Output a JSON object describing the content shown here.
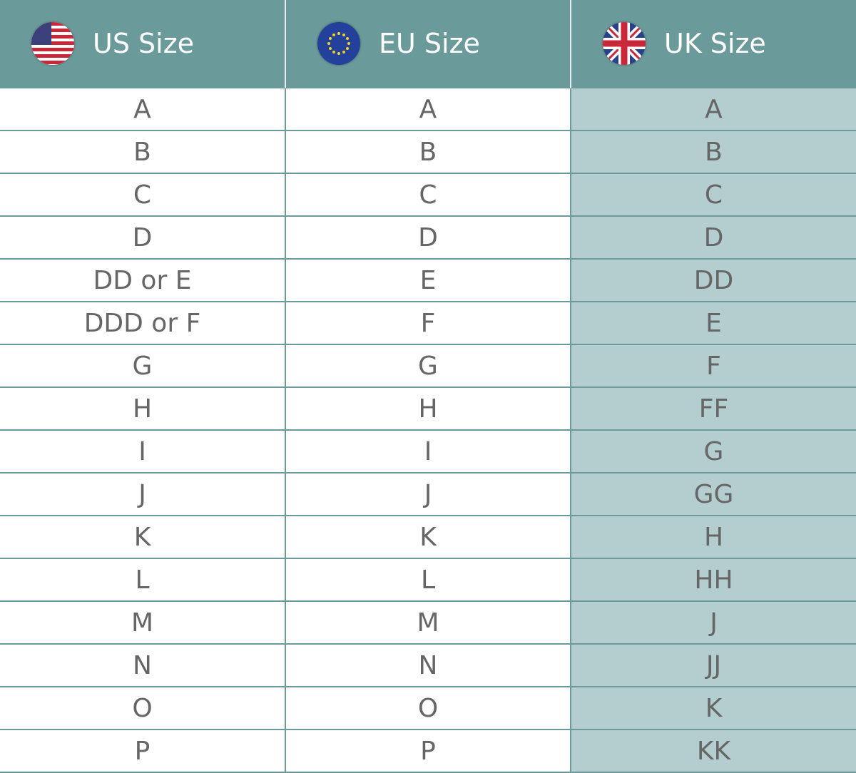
{
  "headers": [
    {
      "label": "US Size",
      "icon": "us-flag-icon"
    },
    {
      "label": "EU Size",
      "icon": "eu-flag-icon"
    },
    {
      "label": "UK Size",
      "icon": "uk-flag-icon"
    }
  ],
  "colors": {
    "header_bg": "#6a9b9a",
    "uk_column_bg": "#b4cdce",
    "text": "#666666"
  },
  "rows": [
    [
      "A",
      "A",
      "A"
    ],
    [
      "B",
      "B",
      "B"
    ],
    [
      "C",
      "C",
      "C"
    ],
    [
      "D",
      "D",
      "D"
    ],
    [
      "DD or E",
      "E",
      "DD"
    ],
    [
      "DDD or F",
      "F",
      "E"
    ],
    [
      "G",
      "G",
      "F"
    ],
    [
      "H",
      "H",
      "FF"
    ],
    [
      "I",
      "I",
      "G"
    ],
    [
      "J",
      "J",
      "GG"
    ],
    [
      "K",
      "K",
      "H"
    ],
    [
      "L",
      "L",
      "HH"
    ],
    [
      "M",
      "M",
      "J"
    ],
    [
      "N",
      "N",
      "JJ"
    ],
    [
      "O",
      "O",
      "K"
    ],
    [
      "P",
      "P",
      "KK"
    ]
  ]
}
